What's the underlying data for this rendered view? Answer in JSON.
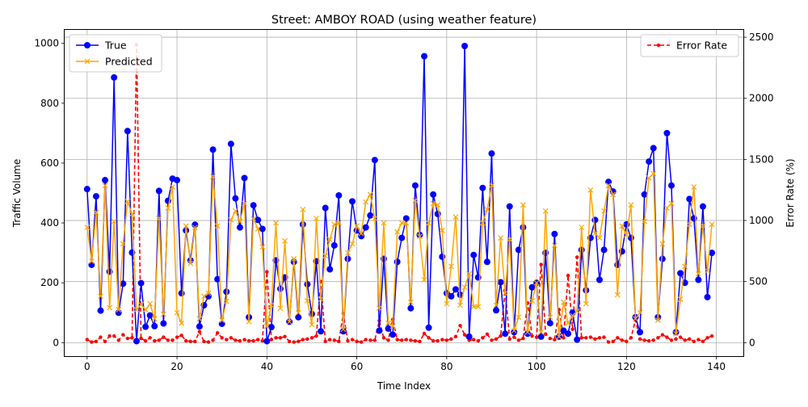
{
  "chart_data": {
    "type": "line",
    "title": "Street: AMBOY ROAD (using weather feature)",
    "xlabel": "Time Index",
    "ylabel_left": "Traffic Volume",
    "ylabel_right": "Error Rate (%)",
    "xlim": [
      -5,
      146
    ],
    "ylim_left": [
      -45,
      1045
    ],
    "ylim_right": [
      -110,
      2560
    ],
    "xticks": [
      0,
      20,
      40,
      60,
      80,
      100,
      120,
      140
    ],
    "yticks_left": [
      0,
      200,
      400,
      600,
      800,
      1000
    ],
    "yticks_right": [
      0,
      500,
      1000,
      1500,
      2000,
      2500
    ],
    "grid": true,
    "legend_left_position": "upper-left",
    "legend_right_position": "upper-right",
    "series": [
      {
        "name": "True",
        "axis": "left",
        "color": "#0000ff",
        "marker": "circle",
        "values": [
          513,
          260,
          489,
          107,
          543,
          237,
          886,
          100,
          197,
          707,
          301,
          5,
          199,
          53,
          91,
          55,
          507,
          64,
          474,
          548,
          543,
          165,
          375,
          275,
          394,
          54,
          125,
          155,
          645,
          212,
          63,
          170,
          664,
          482,
          385,
          550,
          85,
          459,
          410,
          380,
          5,
          52,
          275,
          180,
          218,
          70,
          270,
          85,
          395,
          195,
          96,
          272,
          38,
          450,
          245,
          325,
          492,
          38,
          280,
          472,
          375,
          356,
          385,
          425,
          610,
          40,
          280,
          47,
          27,
          270,
          350,
          415,
          115,
          525,
          360,
          957,
          50,
          495,
          430,
          287,
          165,
          155,
          178,
          160,
          991,
          20,
          293,
          218,
          517,
          270,
          632,
          108,
          202,
          30,
          455,
          35,
          310,
          385,
          30,
          185,
          200,
          20,
          300,
          65,
          363,
          20,
          40,
          30,
          100,
          10,
          310,
          175,
          350,
          410,
          210,
          310,
          537,
          505,
          260,
          305,
          395,
          350,
          85,
          35,
          495,
          605,
          650,
          85,
          280,
          700,
          525,
          35,
          232,
          200,
          480,
          415,
          210,
          455,
          152,
          300
        ]
      },
      {
        "name": "Predicted",
        "axis": "left",
        "color": "#ffa500",
        "marker": "x",
        "values": [
          385,
          272,
          435,
          155,
          525,
          117,
          405,
          110,
          330,
          472,
          430,
          110,
          127,
          110,
          130,
          80,
          415,
          95,
          450,
          520,
          100,
          65,
          390,
          265,
          385,
          80,
          155,
          165,
          555,
          390,
          75,
          138,
          410,
          440,
          405,
          465,
          70,
          415,
          380,
          320,
          55,
          125,
          400,
          115,
          340,
          70,
          280,
          100,
          445,
          140,
          60,
          415,
          145,
          290,
          345,
          395,
          400,
          45,
          300,
          330,
          390,
          365,
          470,
          495,
          415,
          115,
          400,
          65,
          55,
          370,
          400,
          400,
          135,
          475,
          355,
          210,
          400,
          465,
          460,
          375,
          130,
          255,
          420,
          125,
          185,
          230,
          120,
          120,
          400,
          445,
          525,
          125,
          350,
          165,
          345,
          40,
          85,
          460,
          35,
          140,
          200,
          35,
          440,
          85,
          325,
          20,
          135,
          65,
          90,
          105,
          385,
          130,
          510,
          365,
          350,
          440,
          525,
          495,
          160,
          390,
          360,
          460,
          80,
          100,
          405,
          550,
          565,
          75,
          330,
          450,
          465,
          30,
          145,
          255,
          395,
          520,
          230,
          390,
          240,
          395
        ]
      },
      {
        "name": "Error Rate",
        "axis": "right",
        "color": "#ff0000",
        "style": "dashed",
        "marker": "dot",
        "values": [
          25,
          5,
          10,
          45,
          10,
          55,
          55,
          20,
          65,
          35,
          40,
          2440,
          35,
          15,
          40,
          15,
          20,
          45,
          20,
          20,
          45,
          60,
          15,
          10,
          10,
          90,
          10,
          5,
          20,
          80,
          40,
          25,
          40,
          20,
          15,
          25,
          15,
          15,
          25,
          15,
          580,
          25,
          40,
          40,
          50,
          10,
          5,
          10,
          25,
          30,
          40,
          55,
          500,
          10,
          25,
          20,
          10,
          240,
          15,
          25,
          10,
          5,
          25,
          20,
          20,
          180,
          40,
          20,
          190,
          25,
          20,
          25,
          20,
          15,
          10,
          75,
          40,
          15,
          15,
          25,
          20,
          30,
          50,
          140,
          65,
          20,
          25,
          15,
          40,
          70,
          20,
          30,
          55,
          430,
          30,
          45,
          20,
          35,
          325,
          55,
          45,
          640,
          70,
          35,
          25,
          270,
          40,
          550,
          110,
          700,
          40,
          40,
          45,
          30,
          40,
          45,
          5,
          10,
          40,
          20,
          10,
          40,
          185,
          30,
          20,
          15,
          20,
          40,
          65,
          45,
          20,
          30,
          45,
          20,
          30,
          10,
          25,
          10,
          40,
          55
        ]
      }
    ]
  }
}
